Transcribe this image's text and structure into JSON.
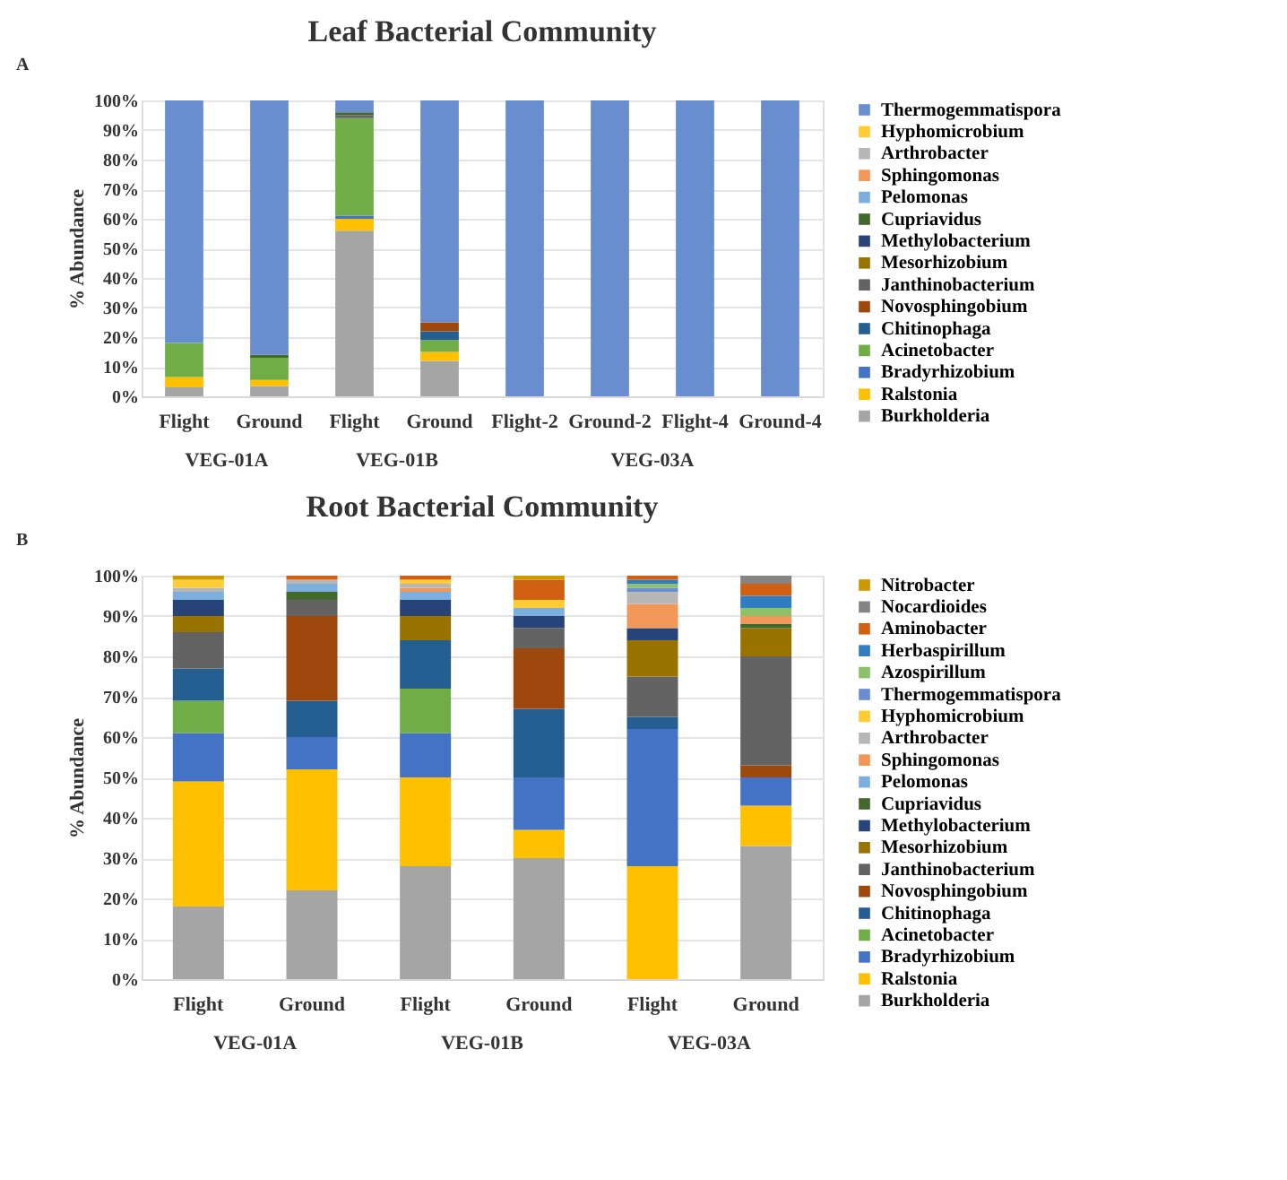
{
  "chart_data": [
    {
      "type": "bar",
      "stacked": true,
      "title": "Leaf Bacterial Community",
      "ylabel": "% Abundance",
      "annotations": [
        "A",
        "VEG-01A",
        "VEG-01B",
        "VEG-03A"
      ],
      "categories": [
        "Flight",
        "Ground",
        "Flight",
        "Ground",
        "Flight-2",
        "Ground-2",
        "Flight-4",
        "Ground-4"
      ],
      "ylim": [
        0,
        100
      ],
      "yticks": [
        {
          "value": 0,
          "label": "0%"
        },
        {
          "value": 10,
          "label": "10%"
        },
        {
          "value": 20,
          "label": "20%"
        },
        {
          "value": 30,
          "label": "30%"
        },
        {
          "value": 40,
          "label": "40%"
        },
        {
          "value": 50,
          "label": "50%"
        },
        {
          "value": 60,
          "label": "60%"
        },
        {
          "value": 70,
          "label": "70%"
        },
        {
          "value": 80,
          "label": "80%"
        },
        {
          "value": 90,
          "label": "90%"
        },
        {
          "value": 100,
          "label": "100%"
        }
      ],
      "grid": "y",
      "legend": "right",
      "series": [
        {
          "name": "Burkholderia",
          "color": "#a5a5a5",
          "values": [
            3,
            3.5,
            56,
            12,
            0,
            0,
            0,
            0
          ]
        },
        {
          "name": "Ralstonia",
          "color": "#ffc000",
          "values": [
            3.5,
            2,
            4,
            3,
            0,
            0,
            0,
            0
          ]
        },
        {
          "name": "Bradyrhizobium",
          "color": "#4472c4",
          "values": [
            0,
            0,
            1,
            0,
            0,
            0,
            0,
            0
          ]
        },
        {
          "name": "Acinetobacter",
          "color": "#70ad47",
          "values": [
            11.5,
            7.5,
            33,
            4,
            0,
            0,
            0,
            0
          ]
        },
        {
          "name": "Chitinophaga",
          "color": "#255e91",
          "values": [
            0,
            0,
            0,
            3,
            0,
            0,
            0,
            0
          ]
        },
        {
          "name": "Novosphingobium",
          "color": "#9e480e",
          "values": [
            0,
            0,
            0,
            3,
            0,
            0,
            0,
            0
          ]
        },
        {
          "name": "Janthinobacterium",
          "color": "#636363",
          "values": [
            0,
            0,
            1,
            0,
            0,
            0,
            0,
            0
          ]
        },
        {
          "name": "Mesorhizobium",
          "color": "#997300",
          "values": [
            0,
            0,
            0,
            0,
            0,
            0,
            0,
            0
          ]
        },
        {
          "name": "Methylobacterium",
          "color": "#264478",
          "values": [
            0,
            0,
            0,
            0,
            0,
            0,
            0,
            0
          ]
        },
        {
          "name": "Cupriavidus",
          "color": "#43682b",
          "values": [
            0,
            1,
            1,
            0,
            0,
            0,
            0,
            0
          ]
        },
        {
          "name": "Pelomonas",
          "color": "#7cafdd",
          "values": [
            0,
            0,
            0,
            0,
            0,
            0,
            0,
            0
          ]
        },
        {
          "name": "Sphingomonas",
          "color": "#f1975a",
          "values": [
            0,
            0,
            0,
            0,
            0,
            0,
            0,
            0
          ]
        },
        {
          "name": "Arthrobacter",
          "color": "#b7b7b7",
          "values": [
            0,
            0,
            0,
            0,
            0,
            0,
            0,
            0
          ]
        },
        {
          "name": "Hyphomicrobium",
          "color": "#ffcd33",
          "values": [
            0,
            0,
            0,
            0,
            0,
            0,
            0,
            0
          ]
        },
        {
          "name": "Thermogemmatispora",
          "color": "#698ed0",
          "values": [
            82,
            86,
            4,
            75,
            100,
            100,
            100,
            100
          ]
        }
      ]
    },
    {
      "type": "bar",
      "stacked": true,
      "title": "Root Bacterial Community",
      "ylabel": "% Abundance",
      "annotations": [
        "B",
        "VEG-01A",
        "VEG-01B",
        "VEG-03A"
      ],
      "categories": [
        "Flight",
        "Ground",
        "Flight",
        "Ground",
        "Flight",
        "Ground"
      ],
      "ylim": [
        0,
        100
      ],
      "yticks": [
        {
          "value": 0,
          "label": "0%"
        },
        {
          "value": 10,
          "label": "10%"
        },
        {
          "value": 20,
          "label": "20%"
        },
        {
          "value": 30,
          "label": "30%"
        },
        {
          "value": 40,
          "label": "40%"
        },
        {
          "value": 50,
          "label": "50%"
        },
        {
          "value": 60,
          "label": "60%"
        },
        {
          "value": 70,
          "label": "70%"
        },
        {
          "value": 80,
          "label": "80%"
        },
        {
          "value": 90,
          "label": "90%"
        },
        {
          "value": 100,
          "label": "100%"
        }
      ],
      "grid": "y",
      "legend": "right",
      "series": [
        {
          "name": "Burkholderia",
          "color": "#a5a5a5",
          "values": [
            18,
            22,
            28,
            30,
            0,
            33
          ]
        },
        {
          "name": "Ralstonia",
          "color": "#ffc000",
          "values": [
            31,
            30,
            22,
            7,
            28,
            10
          ]
        },
        {
          "name": "Bradyrhizobium",
          "color": "#4472c4",
          "values": [
            12,
            8,
            11,
            13,
            34,
            7
          ]
        },
        {
          "name": "Acinetobacter",
          "color": "#70ad47",
          "values": [
            8,
            0,
            11,
            0,
            0,
            0
          ]
        },
        {
          "name": "Chitinophaga",
          "color": "#255e91",
          "values": [
            8,
            9,
            12,
            17,
            3,
            0
          ]
        },
        {
          "name": "Novosphingobium",
          "color": "#9e480e",
          "values": [
            0,
            21,
            0,
            15,
            0,
            3
          ]
        },
        {
          "name": "Janthinobacterium",
          "color": "#636363",
          "values": [
            9,
            4,
            0,
            5,
            10,
            27
          ]
        },
        {
          "name": "Mesorhizobium",
          "color": "#997300",
          "values": [
            4,
            0,
            6,
            0,
            9,
            7
          ]
        },
        {
          "name": "Methylobacterium",
          "color": "#264478",
          "values": [
            4,
            0,
            4,
            3,
            3,
            0
          ]
        },
        {
          "name": "Cupriavidus",
          "color": "#43682b",
          "values": [
            0,
            2,
            0,
            0,
            0,
            1
          ]
        },
        {
          "name": "Pelomonas",
          "color": "#7cafdd",
          "values": [
            2,
            2,
            2,
            2,
            0,
            0
          ]
        },
        {
          "name": "Sphingomonas",
          "color": "#f1975a",
          "values": [
            0,
            0,
            1,
            0,
            6,
            2
          ]
        },
        {
          "name": "Arthrobacter",
          "color": "#b7b7b7",
          "values": [
            1,
            1,
            1,
            0,
            3,
            0
          ]
        },
        {
          "name": "Hyphomicrobium",
          "color": "#ffcd33",
          "values": [
            2,
            0,
            1,
            2,
            0,
            0
          ]
        },
        {
          "name": "Thermogemmatispora",
          "color": "#698ed0",
          "values": [
            0,
            0,
            0,
            0,
            1,
            0
          ]
        },
        {
          "name": "Azospirillum",
          "color": "#8cc168",
          "values": [
            0,
            0,
            0,
            0,
            1,
            2
          ]
        },
        {
          "name": "Herbaspirillum",
          "color": "#327dc2",
          "values": [
            0,
            0,
            0,
            0,
            1,
            3
          ]
        },
        {
          "name": "Aminobacter",
          "color": "#d26012",
          "values": [
            0,
            1,
            1,
            5,
            1,
            3
          ]
        },
        {
          "name": "Nocardioides",
          "color": "#848484",
          "values": [
            0,
            0,
            0,
            0,
            0,
            2
          ]
        },
        {
          "name": "Nitrobacter",
          "color": "#cc9a00",
          "values": [
            1,
            0,
            0,
            1,
            0,
            0
          ]
        }
      ]
    }
  ]
}
